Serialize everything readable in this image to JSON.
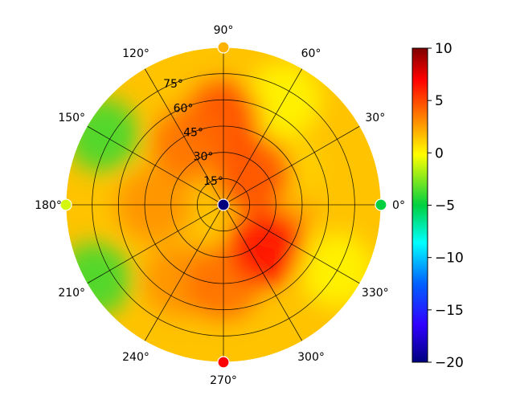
{
  "chart_data": {
    "type": "heatmap",
    "projection": "polar",
    "title": "",
    "angle_ticks": [
      {
        "value": 0,
        "label": "0°"
      },
      {
        "value": 30,
        "label": "30°"
      },
      {
        "value": 60,
        "label": "60°"
      },
      {
        "value": 90,
        "label": "90°"
      },
      {
        "value": 120,
        "label": "120°"
      },
      {
        "value": 150,
        "label": "150°"
      },
      {
        "value": 180,
        "label": "180°"
      },
      {
        "value": 210,
        "label": "210°"
      },
      {
        "value": 240,
        "label": "240°"
      },
      {
        "value": 270,
        "label": "270°"
      },
      {
        "value": 300,
        "label": "300°"
      },
      {
        "value": 330,
        "label": "330°"
      }
    ],
    "radial_ticks": [
      {
        "value": 15,
        "label": "15°"
      },
      {
        "value": 30,
        "label": "30°"
      },
      {
        "value": 45,
        "label": "45°"
      },
      {
        "value": 60,
        "label": "60°"
      },
      {
        "value": 75,
        "label": "75°"
      }
    ],
    "radial_range": [
      0,
      90
    ],
    "grid": true,
    "colorbar": {
      "range": [
        -20,
        10
      ],
      "ticks": [
        10,
        5,
        0,
        -5,
        -10,
        -15,
        -20
      ],
      "tick_labels": [
        "10",
        "5",
        "0",
        "−5",
        "−10",
        "−15",
        "−20"
      ],
      "colormap": "jet-like (dark blue → blue → cyan → green → yellow → orange → red → dark red)"
    },
    "field_samples": [
      {
        "angle": 0,
        "r": 30,
        "value": 3
      },
      {
        "angle": 30,
        "r": 40,
        "value": 1
      },
      {
        "angle": 45,
        "r": 25,
        "value": 5
      },
      {
        "angle": 60,
        "r": 70,
        "value": 0
      },
      {
        "angle": 90,
        "r": 50,
        "value": 5
      },
      {
        "angle": 120,
        "r": 40,
        "value": 4
      },
      {
        "angle": 150,
        "r": 80,
        "value": -4
      },
      {
        "angle": 180,
        "r": 40,
        "value": 3
      },
      {
        "angle": 210,
        "r": 85,
        "value": -4
      },
      {
        "angle": 240,
        "r": 50,
        "value": 3
      },
      {
        "angle": 270,
        "r": 45,
        "value": 4
      },
      {
        "angle": 315,
        "r": 35,
        "value": 7
      },
      {
        "angle": 330,
        "r": 75,
        "value": 0
      }
    ],
    "markers": [
      {
        "angle": 0,
        "r": 0,
        "value": -20
      },
      {
        "angle": 0,
        "r": 90,
        "value": -5
      },
      {
        "angle": 90,
        "r": 90,
        "value": 2
      },
      {
        "angle": 180,
        "r": 90,
        "value": -1
      },
      {
        "angle": 270,
        "r": 90,
        "value": 7
      }
    ]
  }
}
